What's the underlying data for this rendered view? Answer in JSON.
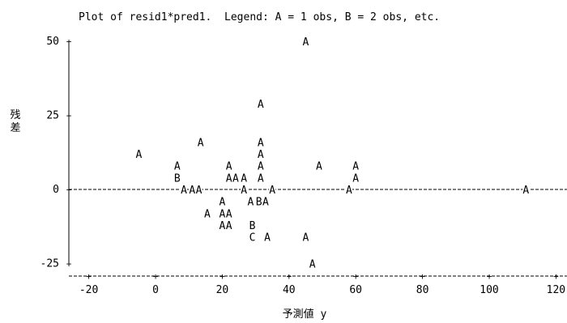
{
  "chart_data": {
    "type": "scatter",
    "title": "Plot of resid1*pred1.  Legend: A = 1 obs, B = 2 obs, etc.",
    "xlabel": "予測値 y",
    "ylabel": "残差",
    "xlim": [
      -27,
      124
    ],
    "ylim": [
      -28,
      52
    ],
    "x_ticks": [
      -20,
      0,
      20,
      40,
      60,
      80,
      100,
      120
    ],
    "y_ticks": [
      -25,
      0,
      25,
      50
    ],
    "grid": false,
    "reference_line_y": 0,
    "legend": "in title",
    "points": [
      {
        "x": 45,
        "y": 50,
        "label": "A"
      },
      {
        "x": 31.5,
        "y": 29,
        "label": "A"
      },
      {
        "x": 13.5,
        "y": 16,
        "label": "A"
      },
      {
        "x": 31.5,
        "y": 16,
        "label": "A"
      },
      {
        "x": -5,
        "y": 12,
        "label": "A"
      },
      {
        "x": 31.5,
        "y": 12,
        "label": "A"
      },
      {
        "x": 6.5,
        "y": 8,
        "label": "A"
      },
      {
        "x": 22,
        "y": 8,
        "label": "A"
      },
      {
        "x": 31.5,
        "y": 8,
        "label": "A"
      },
      {
        "x": 49,
        "y": 8,
        "label": "A"
      },
      {
        "x": 60,
        "y": 8,
        "label": "A"
      },
      {
        "x": 6.5,
        "y": 4,
        "label": "B"
      },
      {
        "x": 22,
        "y": 4,
        "label": "A"
      },
      {
        "x": 24,
        "y": 4,
        "label": "A"
      },
      {
        "x": 26.5,
        "y": 4,
        "label": "A"
      },
      {
        "x": 31.5,
        "y": 4,
        "label": "A"
      },
      {
        "x": 60,
        "y": 4,
        "label": "A"
      },
      {
        "x": 8.5,
        "y": 0,
        "label": "A"
      },
      {
        "x": 11,
        "y": 0,
        "label": "A"
      },
      {
        "x": 13,
        "y": 0,
        "label": "A"
      },
      {
        "x": 26.5,
        "y": 0,
        "label": "A"
      },
      {
        "x": 35,
        "y": 0,
        "label": "A"
      },
      {
        "x": 58,
        "y": 0,
        "label": "A"
      },
      {
        "x": 111,
        "y": 0,
        "label": "A"
      },
      {
        "x": 20,
        "y": -4,
        "label": "A"
      },
      {
        "x": 28.5,
        "y": -4,
        "label": "A"
      },
      {
        "x": 31,
        "y": -4,
        "label": "B"
      },
      {
        "x": 33,
        "y": -4,
        "label": "A"
      },
      {
        "x": 15.5,
        "y": -8,
        "label": "A"
      },
      {
        "x": 20,
        "y": -8,
        "label": "A"
      },
      {
        "x": 22,
        "y": -8,
        "label": "A"
      },
      {
        "x": 20,
        "y": -12,
        "label": "A"
      },
      {
        "x": 22,
        "y": -12,
        "label": "A"
      },
      {
        "x": 29,
        "y": -12,
        "label": "B"
      },
      {
        "x": 29,
        "y": -16,
        "label": "C"
      },
      {
        "x": 33.5,
        "y": -16,
        "label": "A"
      },
      {
        "x": 45,
        "y": -16,
        "label": "A"
      },
      {
        "x": 47,
        "y": -25,
        "label": "A"
      }
    ]
  }
}
